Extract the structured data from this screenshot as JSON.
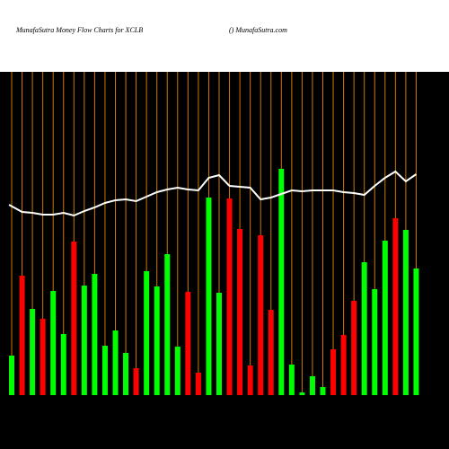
{
  "chart_data": {
    "type": "bar",
    "title": "MunafaSutra  Money Flow  Charts for XCLB",
    "subtitle": "() MunafaSutra.com",
    "ylim": [
      0,
      360
    ],
    "values": [
      44,
      133,
      96,
      85,
      116,
      68,
      171,
      122,
      135,
      55,
      72,
      47,
      30,
      138,
      121,
      157,
      54,
      115,
      25,
      220,
      114,
      219,
      185,
      33,
      178,
      95,
      252,
      34,
      3,
      21,
      9,
      51,
      67,
      105,
      148,
      118,
      172,
      197,
      184,
      141
    ],
    "colors": [
      "#00ff00",
      "#ff0000",
      "#00ff00",
      "#ff0000",
      "#00ff00",
      "#00ff00",
      "#ff0000",
      "#00ff00",
      "#00ff00",
      "#00ff00",
      "#00ff00",
      "#00ff00",
      "#ff0000",
      "#00ff00",
      "#00ff00",
      "#00ff00",
      "#00ff00",
      "#ff0000",
      "#ff0000",
      "#00ff00",
      "#00ff00",
      "#ff0000",
      "#ff0000",
      "#ff0000",
      "#ff0000",
      "#ff0000",
      "#00ff00",
      "#00ff00",
      "#00ff00",
      "#00ff00",
      "#00ff00",
      "#ff0000",
      "#ff0000",
      "#ff0000",
      "#00ff00",
      "#00ff00",
      "#00ff00",
      "#ff0000",
      "#00ff00",
      "#00ff00"
    ],
    "line_values": [
      212,
      204,
      203,
      201,
      201,
      203,
      200,
      205,
      209,
      214,
      217,
      218,
      216,
      221,
      226,
      229,
      231,
      229,
      228,
      242,
      245,
      233,
      232,
      231,
      218,
      220,
      224,
      228,
      227,
      228,
      228,
      228,
      226,
      225,
      223,
      233,
      242,
      249,
      238,
      246
    ],
    "line_color": "#ffffff",
    "grid_color": "#cc7a00"
  }
}
